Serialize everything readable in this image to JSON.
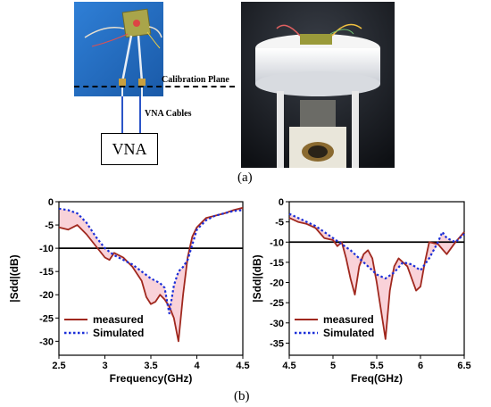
{
  "figure": {
    "part_a_label": "(a)",
    "part_b_label": "(b)",
    "diagram": {
      "calibration_plane_label": "Calibration Plane",
      "cables_label": "VNA Cables",
      "vna_label": "VNA"
    }
  },
  "colors": {
    "measured": "#a0281e",
    "simulated": "#1a2ed8",
    "fill": "#f7c7cf",
    "ref_line": "#000000"
  },
  "chart_data": [
    {
      "type": "line",
      "xlabel": "Frequency(GHz)",
      "ylabel": "|Sdd|(dB)",
      "xlim": [
        2.5,
        4.5
      ],
      "ylim": [
        -33,
        0
      ],
      "xticks": [
        2.5,
        3.0,
        3.5,
        4.0,
        4.5
      ],
      "yticks": [
        0,
        -5,
        -10,
        -15,
        -20,
        -25,
        -30
      ],
      "reference_line": -10,
      "legend_position": "bottom-left",
      "series": [
        {
          "name": "measured",
          "style": "solid",
          "x": [
            2.5,
            2.6,
            2.7,
            2.8,
            2.9,
            3.0,
            3.05,
            3.1,
            3.2,
            3.3,
            3.4,
            3.45,
            3.5,
            3.55,
            3.6,
            3.65,
            3.7,
            3.75,
            3.8,
            3.85,
            3.9,
            3.95,
            4.0,
            4.1,
            4.2,
            4.3,
            4.4,
            4.5
          ],
          "y": [
            -5.5,
            -6.0,
            -5.0,
            -7.0,
            -9.5,
            -12.0,
            -12.5,
            -11.0,
            -12.0,
            -14.0,
            -17.0,
            -20.5,
            -22.0,
            -21.5,
            -20.0,
            -21.0,
            -22.5,
            -25.0,
            -30.0,
            -20.0,
            -12.0,
            -7.5,
            -5.5,
            -3.5,
            -3.0,
            -2.5,
            -1.8,
            -1.3
          ]
        },
        {
          "name": "Simulated",
          "style": "dotted",
          "x": [
            2.5,
            2.6,
            2.7,
            2.8,
            2.9,
            3.0,
            3.1,
            3.2,
            3.3,
            3.4,
            3.5,
            3.6,
            3.65,
            3.7,
            3.75,
            3.8,
            3.85,
            3.9,
            4.0,
            4.1,
            4.2,
            4.3,
            4.4,
            4.5
          ],
          "y": [
            -1.5,
            -1.8,
            -2.5,
            -4.5,
            -7.5,
            -10.0,
            -11.5,
            -12.5,
            -13.5,
            -15.0,
            -16.5,
            -17.5,
            -18.5,
            -24.0,
            -18.0,
            -15.0,
            -14.0,
            -12.5,
            -6.0,
            -4.0,
            -3.0,
            -2.5,
            -2.0,
            -1.8
          ]
        }
      ]
    },
    {
      "type": "line",
      "xlabel": "Freq(GHz)",
      "ylabel": "|Sdd|(dB)",
      "xlim": [
        4.5,
        6.5
      ],
      "ylim": [
        -38,
        0
      ],
      "xticks": [
        4.5,
        5.0,
        5.5,
        6.0,
        6.5
      ],
      "yticks": [
        0,
        -5,
        -10,
        -15,
        -20,
        -25,
        -30,
        -35
      ],
      "reference_line": -10,
      "legend_position": "bottom-left",
      "series": [
        {
          "name": "measured",
          "style": "solid",
          "x": [
            4.5,
            4.6,
            4.7,
            4.8,
            4.9,
            5.0,
            5.05,
            5.1,
            5.15,
            5.2,
            5.25,
            5.3,
            5.35,
            5.4,
            5.45,
            5.5,
            5.55,
            5.6,
            5.65,
            5.7,
            5.75,
            5.8,
            5.85,
            5.9,
            5.95,
            6.0,
            6.05,
            6.1,
            6.2,
            6.3,
            6.4,
            6.5
          ],
          "y": [
            -4.0,
            -5.0,
            -5.5,
            -6.5,
            -9.0,
            -9.5,
            -11.0,
            -10.0,
            -14.0,
            -19.0,
            -23.0,
            -16.0,
            -13.0,
            -12.0,
            -14.0,
            -20.0,
            -27.0,
            -34.0,
            -22.0,
            -16.0,
            -14.0,
            -15.0,
            -16.0,
            -19.0,
            -22.0,
            -21.0,
            -15.0,
            -10.0,
            -10.5,
            -13.0,
            -10.0,
            -7.5
          ]
        },
        {
          "name": "Simulated",
          "style": "dotted",
          "x": [
            4.5,
            4.6,
            4.7,
            4.8,
            4.9,
            5.0,
            5.1,
            5.2,
            5.3,
            5.4,
            5.5,
            5.6,
            5.7,
            5.8,
            5.9,
            6.0,
            6.1,
            6.2,
            6.25,
            6.3,
            6.4,
            6.5
          ],
          "y": [
            -3.0,
            -4.0,
            -5.0,
            -6.0,
            -7.5,
            -9.0,
            -10.5,
            -12.0,
            -14.0,
            -16.0,
            -18.0,
            -19.0,
            -17.5,
            -15.0,
            -15.5,
            -17.0,
            -14.0,
            -10.0,
            -7.5,
            -9.0,
            -10.0,
            -8.0
          ]
        }
      ]
    }
  ]
}
